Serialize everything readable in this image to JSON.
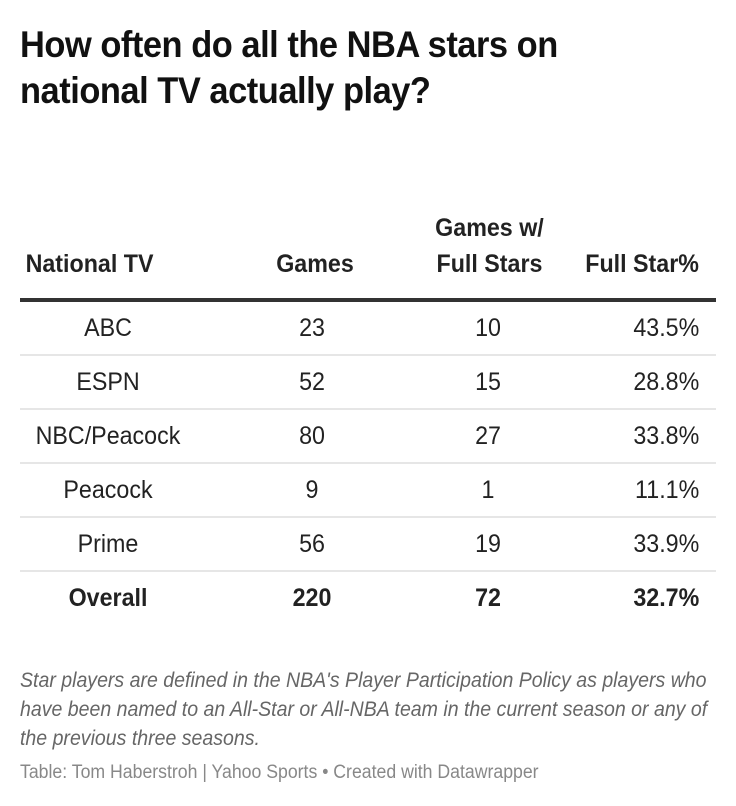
{
  "title": "How often do all the NBA stars on national TV actually play?",
  "table": {
    "headers": [
      "National TV",
      "Games",
      "Games w/ Full Stars",
      "Full Star%"
    ],
    "rows": [
      {
        "network": "ABC",
        "games": "23",
        "full_star_games": "10",
        "full_star_pct": "43.5%"
      },
      {
        "network": "ESPN",
        "games": "52",
        "full_star_games": "15",
        "full_star_pct": "28.8%"
      },
      {
        "network": "NBC/Peacock",
        "games": "80",
        "full_star_games": "27",
        "full_star_pct": "33.8%"
      },
      {
        "network": "Peacock",
        "games": "9",
        "full_star_games": "1",
        "full_star_pct": "11.1%"
      },
      {
        "network": "Prime",
        "games": "56",
        "full_star_games": "19",
        "full_star_pct": "33.9%"
      }
    ],
    "total": {
      "network": "Overall",
      "games": "220",
      "full_star_games": "72",
      "full_star_pct": "32.7%"
    }
  },
  "notes": "Star players are defined in the NBA's Player Participation Policy as players who have been named to an All-Star or All-NBA team in the current season or any of the previous three seasons.",
  "footer": "Table: Tom Haberstroh | Yahoo Sports • Created with Datawrapper",
  "colors": {
    "header_rule": "#333333",
    "row_divider": "#e6e6e6",
    "notes_text": "#666666",
    "footer_text": "#888888"
  },
  "chart_data": {
    "type": "table",
    "title": "How often do all the NBA stars on national TV actually play?",
    "columns": [
      "National TV",
      "Games",
      "Games w/ Full Stars",
      "Full Star%"
    ],
    "rows": [
      [
        "ABC",
        23,
        10,
        43.5
      ],
      [
        "ESPN",
        52,
        15,
        28.8
      ],
      [
        "NBC/Peacock",
        80,
        27,
        33.8
      ],
      [
        "Peacock",
        9,
        1,
        11.1
      ],
      [
        "Prime",
        56,
        19,
        33.9
      ],
      [
        "Overall",
        220,
        72,
        32.7
      ]
    ],
    "categories": [
      "ABC",
      "ESPN",
      "NBC/Peacock",
      "Peacock",
      "Prime",
      "Overall"
    ],
    "series": [
      {
        "name": "Games",
        "values": [
          23,
          52,
          80,
          9,
          56,
          220
        ]
      },
      {
        "name": "Games w/ Full Stars",
        "values": [
          10,
          15,
          27,
          1,
          19,
          72
        ]
      },
      {
        "name": "Full Star%",
        "values": [
          43.5,
          28.8,
          33.8,
          11.1,
          33.9,
          32.7
        ]
      }
    ],
    "notes": "Star players are defined in the NBA's Player Participation Policy as players who have been named to an All-Star or All-NBA team in the current season or any of the previous three seasons.",
    "source": "Table: Tom Haberstroh | Yahoo Sports • Created with Datawrapper"
  }
}
